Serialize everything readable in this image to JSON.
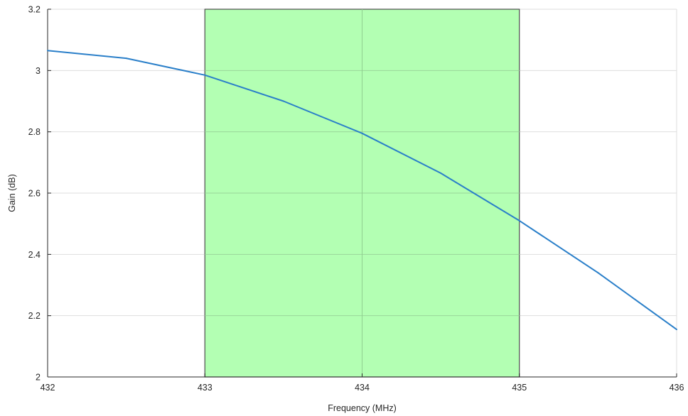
{
  "chart_data": {
    "type": "line",
    "title": "",
    "xlabel": "Frequency (MHz)",
    "ylabel": "Gain (dB)",
    "xlim": [
      432,
      436
    ],
    "ylim": [
      2,
      3.2
    ],
    "x_ticks": [
      "432",
      "433",
      "434",
      "435",
      "436"
    ],
    "y_ticks": [
      "2",
      "2.2",
      "2.4",
      "2.6",
      "2.8",
      "3",
      "3.2"
    ],
    "grid": true,
    "highlight_band": {
      "x_range": [
        433,
        435
      ],
      "color": "#b3ffb3",
      "edge_color": "#4d4d4d"
    },
    "series": [
      {
        "color": "#2a7fc9",
        "x": [
          432,
          432.5,
          433,
          433.5,
          434,
          434.5,
          435,
          435.5,
          436
        ],
        "y": [
          3.065,
          3.04,
          2.985,
          2.9,
          2.795,
          2.665,
          2.51,
          2.34,
          2.155
        ]
      }
    ]
  }
}
